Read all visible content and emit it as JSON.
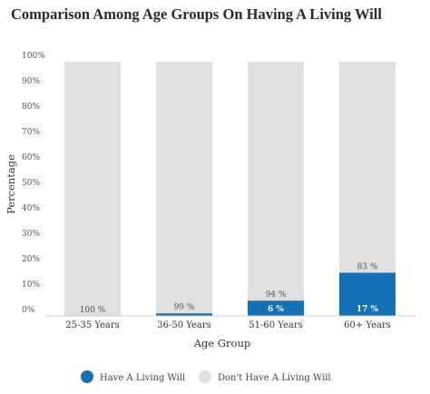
{
  "chart_data": {
    "type": "bar",
    "stacked": true,
    "title": "Comparison Among Age Groups On Having A Living Will",
    "xlabel": "Age Group",
    "ylabel": "Percentage",
    "categories": [
      "25-35 Years",
      "36-50 Years",
      "51-60 Years",
      "60+ Years"
    ],
    "series": [
      {
        "name": "Have A Living Will",
        "values": [
          0,
          1,
          6,
          17
        ],
        "color": "#1471b5"
      },
      {
        "name": "Don't Have A Living Will",
        "values": [
          100,
          99,
          94,
          83
        ],
        "color": "#e0e0e0"
      }
    ],
    "data_labels": {
      "have": [
        "",
        "",
        "6 %",
        "17 %"
      ],
      "dont": [
        "100 %",
        "99 %",
        "94 %",
        "83 %"
      ]
    },
    "yticks": [
      "0%",
      "10%",
      "20%",
      "30%",
      "40%",
      "50%",
      "60%",
      "70%",
      "80%",
      "90%",
      "100%"
    ],
    "ylim": [
      0,
      100
    ],
    "grid": false,
    "legend_position": "bottom"
  }
}
